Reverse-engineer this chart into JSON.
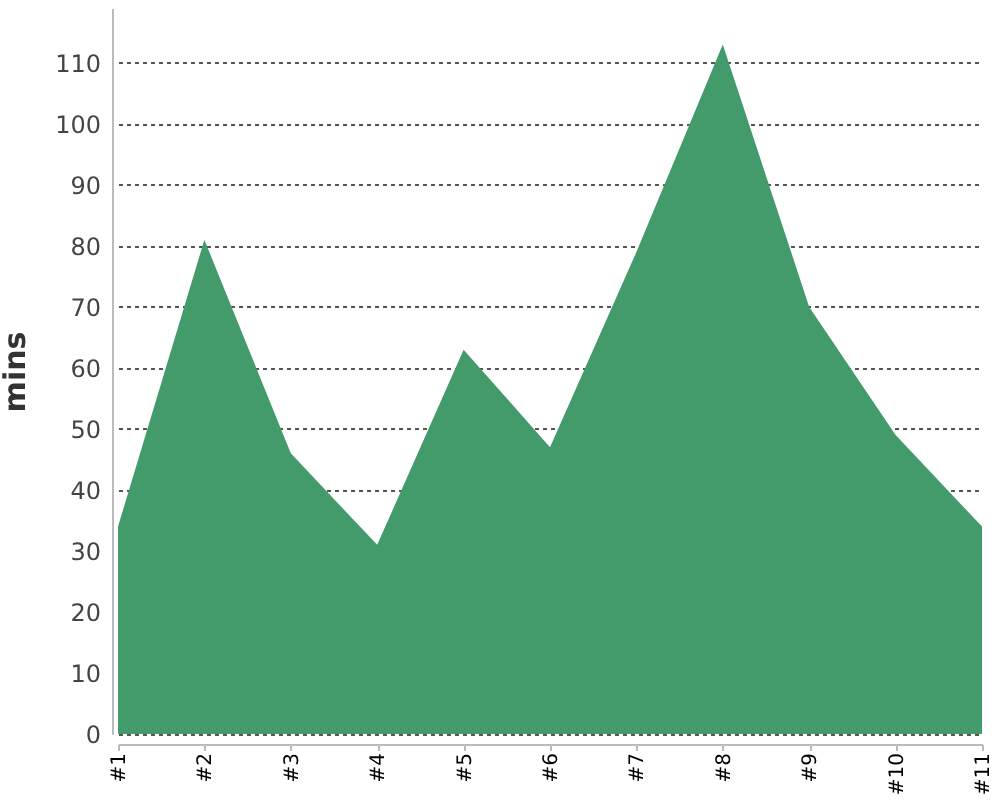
{
  "chart_data": {
    "type": "area",
    "ylabel": "mins",
    "categories": [
      "#1",
      "#2",
      "#3",
      "#4",
      "#5",
      "#6",
      "#7",
      "#8",
      "#9",
      "#10",
      "#11"
    ],
    "values": [
      34,
      81,
      46,
      31,
      63,
      47,
      79,
      113,
      70,
      49,
      34
    ],
    "color": "#439a6b",
    "ylim": [
      0,
      119
    ],
    "yticks": [
      0,
      10,
      20,
      30,
      40,
      50,
      60,
      70,
      80,
      90,
      100,
      110
    ],
    "grid": "y"
  }
}
